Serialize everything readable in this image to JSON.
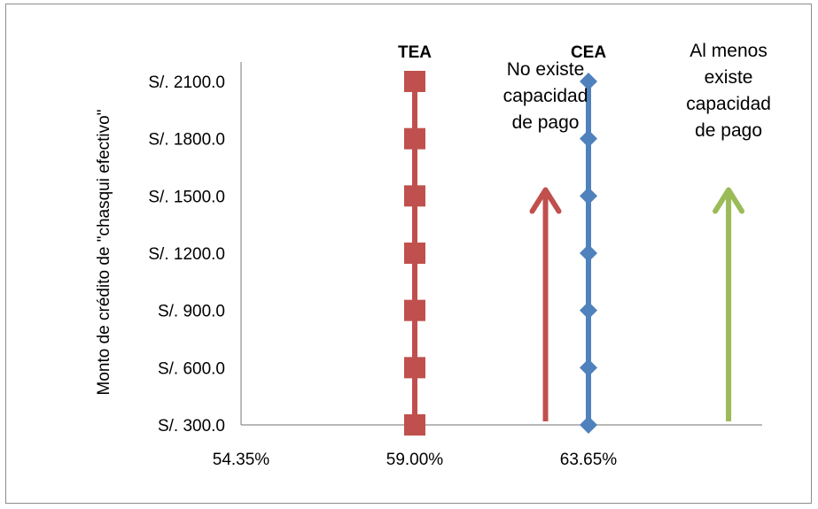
{
  "chart_data": {
    "type": "scatter",
    "ylabel": "Monto de crédito  de \"chasqui efectivo\"",
    "xlabel": "",
    "title": "",
    "x_ticks": [
      "54.35%",
      "59.00%",
      "63.65%"
    ],
    "x_tick_values": [
      54.35,
      59.0,
      63.65
    ],
    "xlim": [
      54.35,
      68.3
    ],
    "y_ticks": [
      "S/. 300.0",
      "S/. 600.0",
      "S/. 900.0",
      "S/. 1200.0",
      "S/. 1500.0",
      "S/. 1800.0",
      "S/. 2100.0"
    ],
    "y_tick_values": [
      300,
      600,
      900,
      1200,
      1500,
      1800,
      2100
    ],
    "ylim": [
      300,
      2100
    ],
    "grid": false,
    "series": [
      {
        "name": "TEA",
        "color": "#c0504d",
        "marker": "square",
        "x": [
          59.0,
          59.0,
          59.0,
          59.0,
          59.0,
          59.0,
          59.0
        ],
        "y": [
          300,
          600,
          900,
          1200,
          1500,
          1800,
          2100
        ]
      },
      {
        "name": "CEA",
        "color": "#4f81bd",
        "marker": "diamond",
        "x": [
          63.65,
          63.65,
          63.65,
          63.65,
          63.65,
          63.65,
          63.65
        ],
        "y": [
          300,
          600,
          900,
          1200,
          1500,
          1800,
          2100
        ]
      }
    ],
    "annotations": [
      {
        "id": "no-capacity",
        "lines": [
          "No existe",
          "capacidad",
          "de pago"
        ],
        "arrow_color": "#c0504d",
        "arrow_x": 62.5,
        "arrow_y": [
          300,
          1550
        ]
      },
      {
        "id": "capacity",
        "lines": [
          "Al menos",
          "existe",
          "capacidad",
          "de pago"
        ],
        "arrow_color": "#9bbb59",
        "arrow_x": 67.4,
        "arrow_y": [
          300,
          1550
        ]
      }
    ]
  }
}
